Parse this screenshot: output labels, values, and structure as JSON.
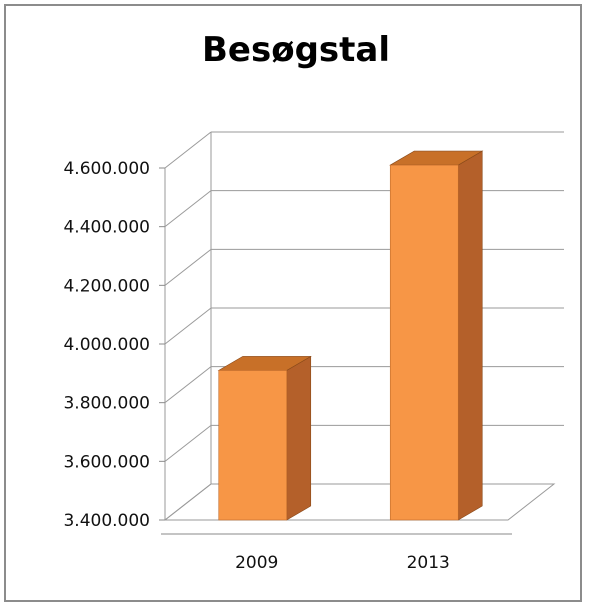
{
  "chart_data": {
    "type": "bar",
    "title": "Besøgstal",
    "categories": [
      "2009",
      "2013"
    ],
    "values": [
      3910000,
      4610000
    ],
    "ylim": [
      3400000,
      4600000
    ],
    "yticks": [
      "3.400.000",
      "3.600.000",
      "3.800.000",
      "4.000.000",
      "4.200.000",
      "4.400.000",
      "4.600.000"
    ],
    "ytick_values": [
      3400000,
      3600000,
      3800000,
      4000000,
      4200000,
      4400000,
      4600000
    ],
    "grid": true,
    "style": "3d-column",
    "bar_color": "#F79646",
    "bar_side_color": "#B4602A",
    "bar_top_color": "#C87028"
  }
}
